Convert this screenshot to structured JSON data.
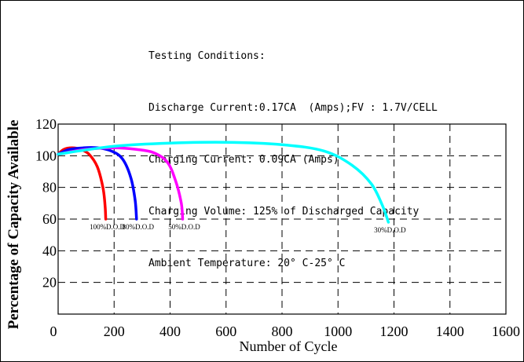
{
  "conditions": {
    "title": "Testing Conditions:",
    "lines": [
      "Discharge Current:0.17CA  (Amps);FV : 1.7V/CELL",
      "Charging Current: 0.09CA (Amps)",
      "Charging Volume: 125% of Discharged Capacity",
      "Ambient Temperature: 20° C-25° C"
    ]
  },
  "chart_data": {
    "type": "line",
    "title": "",
    "xlabel": "Number of Cycle",
    "ylabel": "Percentage of Capacity Available",
    "xlim": [
      0,
      1600
    ],
    "ylim": [
      0,
      120
    ],
    "x_ticks": [
      0,
      200,
      400,
      600,
      800,
      1000,
      1200,
      1400,
      1600
    ],
    "y_ticks": [
      20,
      40,
      60,
      80,
      100,
      120
    ],
    "grid": true,
    "series": [
      {
        "name": "100%D.O.D",
        "color": "#ff0000",
        "points": [
          [
            0,
            101
          ],
          [
            20,
            104
          ],
          [
            50,
            105
          ],
          [
            80,
            104
          ],
          [
            110,
            101
          ],
          [
            140,
            93
          ],
          [
            160,
            80
          ],
          [
            168,
            68
          ],
          [
            170,
            60
          ]
        ]
      },
      {
        "name": "80%D.O.D",
        "color": "#0000ff",
        "points": [
          [
            0,
            101
          ],
          [
            40,
            104
          ],
          [
            90,
            105
          ],
          [
            140,
            105
          ],
          [
            190,
            103
          ],
          [
            230,
            98
          ],
          [
            260,
            86
          ],
          [
            275,
            72
          ],
          [
            280,
            60
          ]
        ]
      },
      {
        "name": "50%D.O.D",
        "color": "#ff00ff",
        "points": [
          [
            0,
            101
          ],
          [
            100,
            104
          ],
          [
            200,
            105
          ],
          [
            280,
            104
          ],
          [
            340,
            102
          ],
          [
            390,
            96
          ],
          [
            420,
            84
          ],
          [
            440,
            70
          ],
          [
            445,
            60
          ]
        ]
      },
      {
        "name": "30%D.O.D",
        "color": "#00ffff",
        "points": [
          [
            0,
            101
          ],
          [
            200,
            106
          ],
          [
            400,
            108
          ],
          [
            600,
            108.5
          ],
          [
            800,
            107
          ],
          [
            950,
            103
          ],
          [
            1050,
            94
          ],
          [
            1120,
            82
          ],
          [
            1160,
            68
          ],
          [
            1180,
            58
          ]
        ]
      }
    ]
  }
}
